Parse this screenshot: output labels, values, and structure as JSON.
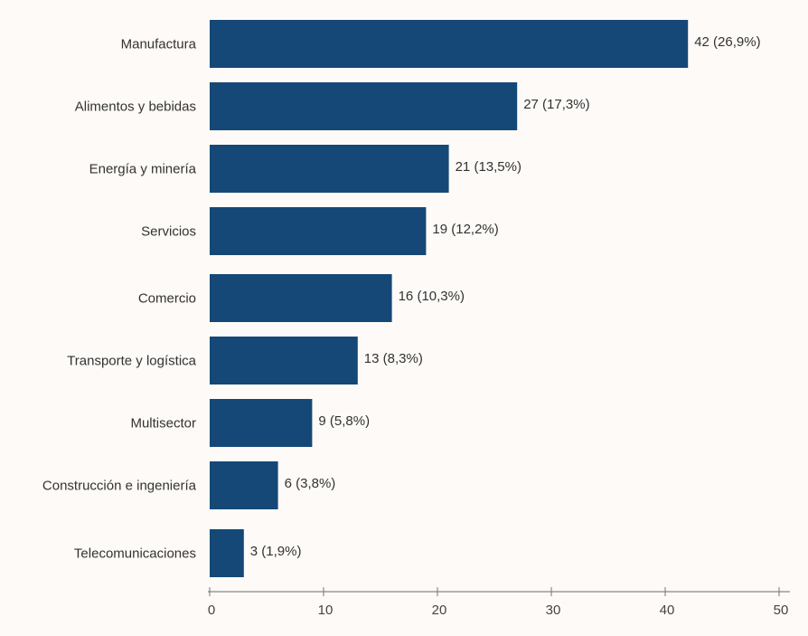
{
  "chart_data": {
    "type": "bar",
    "orientation": "horizontal",
    "title": "",
    "xlabel": "",
    "ylabel": "",
    "xlim": [
      0,
      50
    ],
    "grid": false,
    "categories": [
      "Manufactura",
      "Alimentos y bebidas",
      "Energía y minería",
      "Servicios",
      "Comercio",
      "Transporte y logística",
      "Multisector",
      "Construcción e ingeniería",
      "Telecomunicaciones"
    ],
    "values": [
      42,
      27,
      21,
      19,
      16,
      13,
      9,
      6,
      3
    ],
    "data_labels": [
      "42 (26,9%)",
      "27 (17,3%)",
      "21 (13,5%)",
      "19 (12,2%)",
      "16 (10,3%)",
      "13 (8,3%)",
      "9 (5,8%)",
      "6 (3,8%)",
      "3 (1,9%)"
    ],
    "x_ticks": [
      "0",
      "10",
      "20",
      "30",
      "40",
      "50"
    ],
    "x_tick_values": [
      0,
      10,
      20,
      30,
      40,
      50
    ],
    "colors": {
      "bar": "#154876",
      "axis": "#b3b3b3",
      "background": "#fdfaf7",
      "text": "#333333"
    }
  }
}
